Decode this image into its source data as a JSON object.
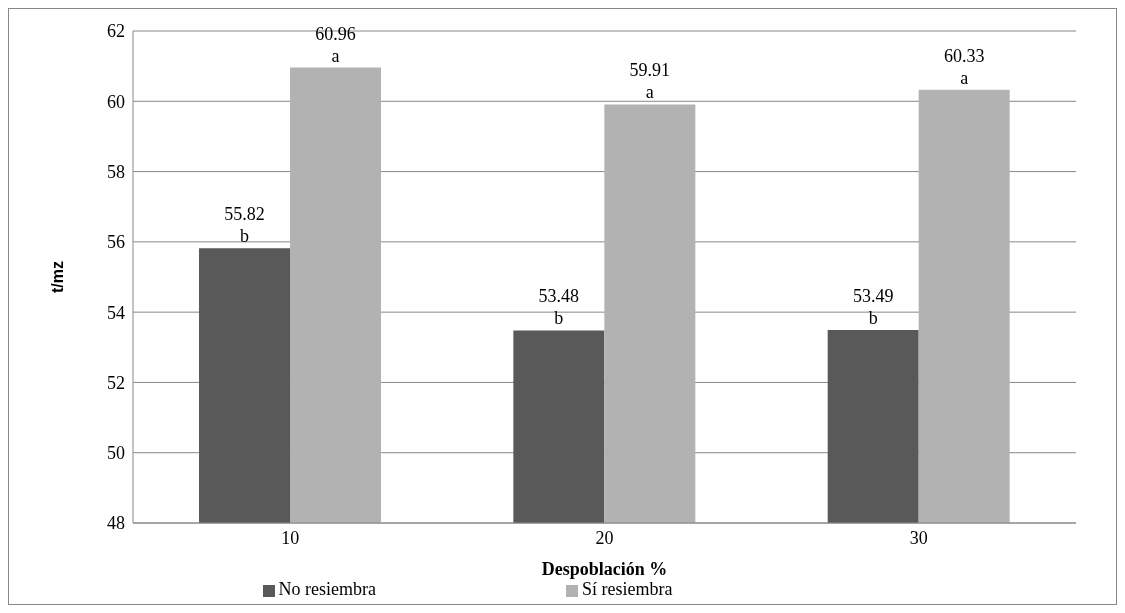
{
  "chart_data": {
    "type": "bar",
    "xlabel": "Despoblación %",
    "ylabel": "t/mz",
    "categories": [
      "10",
      "20",
      "30"
    ],
    "series": [
      {
        "name": "No resiembra",
        "color": "#595959",
        "values": [
          55.82,
          53.48,
          53.49
        ],
        "value_labels": [
          "55.82\nb",
          "53.48\nb",
          "53.49\nb"
        ]
      },
      {
        "name": "Sí resiembra",
        "color": "#b2b2b2",
        "values": [
          60.96,
          59.91,
          60.33
        ],
        "value_labels": [
          "60.96\na",
          "59.91\na",
          "60.33\na"
        ]
      }
    ],
    "ylim": [
      48,
      62
    ],
    "yticks": [
      48,
      50,
      52,
      54,
      56,
      58,
      60,
      62
    ],
    "grid": "y",
    "legend": "bottom"
  }
}
